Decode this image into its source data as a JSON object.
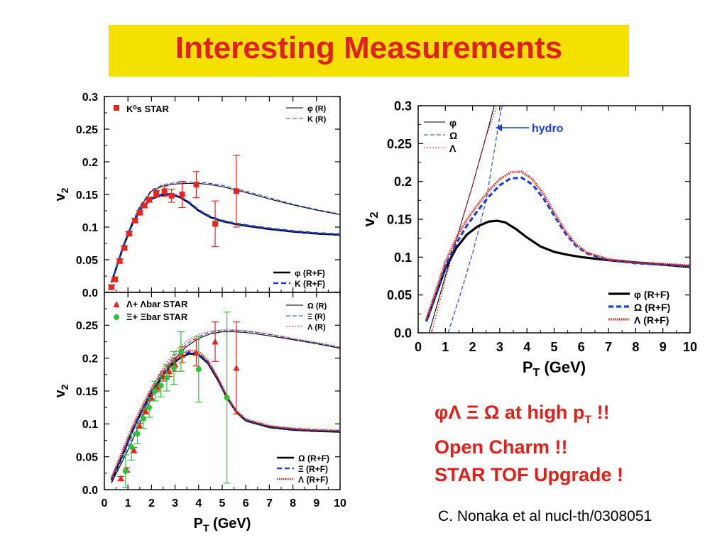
{
  "slide": {
    "title": "Interesting Measurements",
    "notes": {
      "line1_symbols": "φΛ Ξ Ω",
      "line1_text": "at high p",
      "line1_sub": "T",
      "line1_end": "!!",
      "line2": "Open Charm !!",
      "line3": "STAR TOF Upgrade !"
    },
    "citation": "C. Nonaka et al nucl-th/0308051"
  },
  "colors": {
    "title_bg": "#f5e100",
    "title_text": "#e0201a",
    "data_red": "#e8251c",
    "data_green": "#2ec33a",
    "model_blue": "#1a3fd8"
  },
  "chart_data": [
    {
      "type": "line",
      "panel": "top-left",
      "xlabel": "",
      "ylabel": "v2",
      "xlim": [
        0,
        10
      ],
      "ylim": [
        0,
        0.3
      ],
      "x_ticks": [
        "",
        "",
        "",
        "",
        "",
        "",
        "",
        "",
        "",
        "",
        ""
      ],
      "y_ticks": [
        "0.0",
        "0.05",
        "0.1",
        "0.15",
        "0.2",
        "0.25",
        "0.3"
      ],
      "legend_data": [
        "K⁰s STAR"
      ],
      "legend_lines": [
        {
          "label": "φ (R)",
          "style": "thin-solid"
        },
        {
          "label": "K  (R)",
          "style": "thin-dashed"
        },
        {
          "label": "φ (R+F)",
          "style": "thick-solid"
        },
        {
          "label": "K  (R+F)",
          "style": "thick-dashed"
        }
      ],
      "points": [
        {
          "series": "K0s STAR",
          "x": [
            0.3,
            0.45,
            0.65,
            0.85,
            1.05,
            1.3,
            1.5,
            1.7,
            1.9,
            2.2,
            2.55,
            2.85,
            3.3,
            3.9,
            4.7,
            5.6
          ],
          "y": [
            0.008,
            0.02,
            0.048,
            0.068,
            0.09,
            0.11,
            0.122,
            0.133,
            0.142,
            0.151,
            0.155,
            0.148,
            0.15,
            0.165,
            0.105,
            0.155
          ],
          "err": [
            0.003,
            0.003,
            0.003,
            0.003,
            0.003,
            0.003,
            0.003,
            0.003,
            0.004,
            0.005,
            0.008,
            0.01,
            0.02,
            0.02,
            0.035,
            0.055
          ]
        }
      ],
      "series": [
        {
          "label": "φ (R)",
          "style": "thin-solid",
          "x": [
            0.3,
            1,
            1.5,
            2,
            2.5,
            3,
            3.5,
            4,
            4.5,
            5,
            6,
            7,
            8,
            9,
            10
          ],
          "y": [
            0.015,
            0.09,
            0.13,
            0.155,
            0.163,
            0.166,
            0.167,
            0.167,
            0.165,
            0.162,
            0.153,
            0.143,
            0.134,
            0.126,
            0.119
          ]
        },
        {
          "label": "K  (R)",
          "style": "thin-dashed",
          "x": [
            0.3,
            1,
            1.5,
            2,
            2.5,
            3,
            3.5,
            4,
            4.5,
            5,
            6,
            7,
            8,
            9,
            10
          ],
          "y": [
            0.015,
            0.092,
            0.132,
            0.157,
            0.165,
            0.168,
            0.169,
            0.169,
            0.167,
            0.164,
            0.155,
            0.145,
            0.135,
            0.127,
            0.12
          ]
        },
        {
          "label": "φ (R+F)",
          "style": "thick-solid",
          "x": [
            0.3,
            0.8,
            1.2,
            1.6,
            2,
            2.4,
            2.8,
            3.2,
            3.6,
            4,
            4.5,
            5,
            5.5,
            6,
            7,
            8,
            9,
            10
          ],
          "y": [
            0.015,
            0.07,
            0.106,
            0.13,
            0.143,
            0.149,
            0.15,
            0.146,
            0.137,
            0.125,
            0.115,
            0.109,
            0.105,
            0.102,
            0.097,
            0.093,
            0.09,
            0.088
          ]
        },
        {
          "label": "K  (R+F)",
          "style": "thick-dashed",
          "x": [
            0.3,
            0.8,
            1.2,
            1.6,
            2,
            2.4,
            2.8,
            3.2,
            3.6,
            4,
            4.5,
            5,
            5.5,
            6,
            7,
            8,
            9,
            10
          ],
          "y": [
            0.015,
            0.071,
            0.107,
            0.131,
            0.144,
            0.15,
            0.151,
            0.147,
            0.138,
            0.126,
            0.116,
            0.11,
            0.106,
            0.103,
            0.098,
            0.094,
            0.091,
            0.089
          ]
        }
      ]
    },
    {
      "type": "line",
      "panel": "bottom-left",
      "xlabel": "PT (GeV)",
      "ylabel": "v2",
      "xlim": [
        0,
        10
      ],
      "ylim": [
        0,
        0.3
      ],
      "x_ticks": [
        "0",
        "1",
        "2",
        "3",
        "4",
        "5",
        "6",
        "7",
        "8",
        "9",
        "10"
      ],
      "y_ticks": [
        "0.0",
        "0.05",
        "0.1",
        "0.15",
        "0.2",
        "0.25",
        ""
      ],
      "legend_data": [
        "Λ+ Λbar STAR",
        "Ξ+ Ξbar STAR"
      ],
      "legend_lines": [
        {
          "label": "Ω (R)",
          "style": "thin-solid"
        },
        {
          "label": "Ξ (R)",
          "style": "thin-dashed"
        },
        {
          "label": "Λ (R)",
          "style": "thin-dotted"
        },
        {
          "label": "Ω (R+F)",
          "style": "thick-solid"
        },
        {
          "label": "Ξ (R+F)",
          "style": "thick-dashed"
        },
        {
          "label": "Λ (R+F)",
          "style": "thick-dotted"
        }
      ],
      "points": [
        {
          "series": "Λ+Λbar STAR",
          "x": [
            0.7,
            0.95,
            1.25,
            1.5,
            1.75,
            2,
            2.25,
            2.5,
            2.75,
            3,
            3.3,
            3.9,
            4.7,
            5.6
          ],
          "y": [
            0.017,
            0.03,
            0.06,
            0.097,
            0.12,
            0.14,
            0.155,
            0.172,
            0.18,
            0.19,
            0.205,
            0.208,
            0.225,
            0.185
          ],
          "err": [
            0.003,
            0.003,
            0.004,
            0.004,
            0.005,
            0.005,
            0.006,
            0.007,
            0.008,
            0.01,
            0.012,
            0.02,
            0.03,
            0.07
          ]
        },
        {
          "series": "Ξ+Ξbar STAR",
          "x": [
            0.9,
            1.15,
            1.4,
            1.65,
            1.9,
            2.15,
            2.4,
            2.65,
            2.95,
            3.25,
            4,
            5.2
          ],
          "y": [
            0.028,
            0.065,
            0.085,
            0.108,
            0.125,
            0.15,
            0.158,
            0.17,
            0.185,
            0.21,
            0.183,
            0.14
          ],
          "err": [
            0.025,
            0.02,
            0.015,
            0.015,
            0.015,
            0.015,
            0.017,
            0.02,
            0.025,
            0.03,
            0.05,
            0.13
          ]
        }
      ],
      "series": [
        {
          "label": "Ω (R)",
          "style": "thin-solid",
          "x": [
            0.3,
            1,
            1.5,
            2,
            2.5,
            3,
            3.5,
            4,
            4.5,
            5,
            5.5,
            6,
            7,
            8,
            9,
            10
          ],
          "y": [
            0.01,
            0.06,
            0.1,
            0.14,
            0.175,
            0.2,
            0.218,
            0.23,
            0.237,
            0.24,
            0.24,
            0.239,
            0.234,
            0.228,
            0.222,
            0.215
          ]
        },
        {
          "label": "Ξ (R)",
          "style": "thin-dashed",
          "x": [
            0.3,
            1,
            1.5,
            2,
            2.5,
            3,
            3.5,
            4,
            4.5,
            5,
            5.5,
            6,
            7,
            8,
            9,
            10
          ],
          "y": [
            0.012,
            0.065,
            0.105,
            0.145,
            0.18,
            0.205,
            0.222,
            0.233,
            0.239,
            0.242,
            0.242,
            0.241,
            0.236,
            0.229,
            0.223,
            0.216
          ]
        },
        {
          "label": "Λ (R)",
          "style": "thin-dotted",
          "x": [
            0.3,
            1,
            1.5,
            2,
            2.5,
            3,
            3.5,
            4,
            4.5,
            5,
            5.5,
            6,
            7,
            8,
            9,
            10
          ],
          "y": [
            0.014,
            0.072,
            0.112,
            0.152,
            0.186,
            0.21,
            0.226,
            0.236,
            0.241,
            0.243,
            0.243,
            0.242,
            0.237,
            0.23,
            0.224,
            0.217
          ]
        },
        {
          "label": "Ω (R+F)",
          "style": "thick-solid",
          "x": [
            0.3,
            0.8,
            1.2,
            1.6,
            2,
            2.4,
            2.8,
            3.2,
            3.6,
            4,
            4.4,
            4.8,
            5.2,
            5.6,
            6,
            7,
            8,
            9,
            10
          ],
          "y": [
            0.015,
            0.055,
            0.09,
            0.12,
            0.148,
            0.17,
            0.188,
            0.2,
            0.207,
            0.205,
            0.192,
            0.168,
            0.14,
            0.118,
            0.105,
            0.095,
            0.091,
            0.089,
            0.088
          ]
        },
        {
          "label": "Ξ (R+F)",
          "style": "thick-dashed",
          "x": [
            0.3,
            0.8,
            1.2,
            1.6,
            2,
            2.4,
            2.8,
            3.2,
            3.6,
            4,
            4.4,
            4.8,
            5.2,
            5.6,
            6,
            7,
            8,
            9,
            10
          ],
          "y": [
            0.016,
            0.057,
            0.092,
            0.122,
            0.15,
            0.172,
            0.19,
            0.202,
            0.209,
            0.207,
            0.194,
            0.17,
            0.141,
            0.119,
            0.106,
            0.096,
            0.092,
            0.09,
            0.089
          ]
        },
        {
          "label": "Λ (R+F)",
          "style": "thick-dotted",
          "x": [
            0.3,
            0.8,
            1.2,
            1.6,
            2,
            2.4,
            2.8,
            3.2,
            3.6,
            4,
            4.4,
            4.8,
            5.2,
            5.6,
            6,
            7,
            8,
            9,
            10
          ],
          "y": [
            0.018,
            0.062,
            0.097,
            0.127,
            0.155,
            0.177,
            0.194,
            0.205,
            0.212,
            0.21,
            0.196,
            0.171,
            0.142,
            0.12,
            0.107,
            0.097,
            0.093,
            0.091,
            0.09
          ]
        }
      ]
    },
    {
      "type": "line",
      "panel": "right",
      "xlabel": "PT (GeV)",
      "ylabel": "v2",
      "xlim": [
        0,
        10
      ],
      "ylim": [
        0,
        0.3
      ],
      "x_ticks": [
        "0",
        "1",
        "2",
        "3",
        "4",
        "5",
        "6",
        "7",
        "8",
        "9",
        "10"
      ],
      "y_ticks": [
        "0.0",
        "0.05",
        "0.1",
        "0.15",
        "0.2",
        "0.25",
        "0.3"
      ],
      "annotation": "hydro",
      "legend_lines": [
        {
          "label": "φ",
          "style": "thin-solid"
        },
        {
          "label": "Ω",
          "style": "thin-dashed"
        },
        {
          "label": "Λ",
          "style": "thin-dotted"
        },
        {
          "label": "φ (R+F)",
          "style": "thick-solid"
        },
        {
          "label": "Ω (R+F)",
          "style": "thick-dashed"
        },
        {
          "label": "Λ (R+F)",
          "style": "thick-dotted"
        }
      ],
      "series": [
        {
          "label": "φ",
          "style": "thin-solid",
          "x": [
            0.4,
            1,
            1.5,
            2,
            2.5,
            2.8
          ],
          "y": [
            0.0,
            0.075,
            0.135,
            0.195,
            0.26,
            0.3
          ]
        },
        {
          "label": "Ω",
          "style": "thin-dashed",
          "x": [
            1.1,
            1.5,
            2,
            2.5,
            3,
            3.1
          ],
          "y": [
            0.0,
            0.045,
            0.105,
            0.175,
            0.285,
            0.3
          ]
        },
        {
          "label": "Λ",
          "style": "thin-dotted",
          "x": [
            0.5,
            1,
            1.5,
            2,
            2.5,
            2.9
          ],
          "y": [
            0.0,
            0.07,
            0.135,
            0.195,
            0.26,
            0.3
          ]
        },
        {
          "label": "φ (R+F)",
          "style": "thick-solid",
          "x": [
            0.3,
            0.6,
            1,
            1.4,
            1.8,
            2.2,
            2.6,
            2.9,
            3.2,
            3.6,
            4,
            4.5,
            5,
            5.5,
            6,
            7,
            8,
            9,
            10
          ],
          "y": [
            0.015,
            0.045,
            0.085,
            0.112,
            0.13,
            0.141,
            0.147,
            0.148,
            0.146,
            0.137,
            0.126,
            0.114,
            0.107,
            0.103,
            0.1,
            0.096,
            0.093,
            0.09,
            0.087
          ]
        },
        {
          "label": "Ω (R+F)",
          "style": "thick-dashed",
          "x": [
            0.3,
            0.6,
            1,
            1.4,
            1.8,
            2.2,
            2.6,
            3,
            3.4,
            3.8,
            4.2,
            4.6,
            5,
            5.4,
            5.8,
            6.2,
            7,
            8,
            9,
            10
          ],
          "y": [
            0.015,
            0.045,
            0.088,
            0.118,
            0.142,
            0.162,
            0.18,
            0.195,
            0.204,
            0.205,
            0.196,
            0.178,
            0.155,
            0.132,
            0.115,
            0.105,
            0.096,
            0.092,
            0.09,
            0.088
          ]
        },
        {
          "label": "Λ (R+F)",
          "style": "thick-dotted",
          "x": [
            0.3,
            0.6,
            1,
            1.4,
            1.8,
            2.2,
            2.6,
            3,
            3.4,
            3.8,
            4.2,
            4.6,
            5,
            5.4,
            5.8,
            6.2,
            7,
            8,
            9,
            10
          ],
          "y": [
            0.018,
            0.05,
            0.094,
            0.125,
            0.15,
            0.17,
            0.188,
            0.203,
            0.212,
            0.213,
            0.203,
            0.184,
            0.159,
            0.135,
            0.117,
            0.106,
            0.097,
            0.093,
            0.091,
            0.089
          ]
        }
      ]
    }
  ]
}
